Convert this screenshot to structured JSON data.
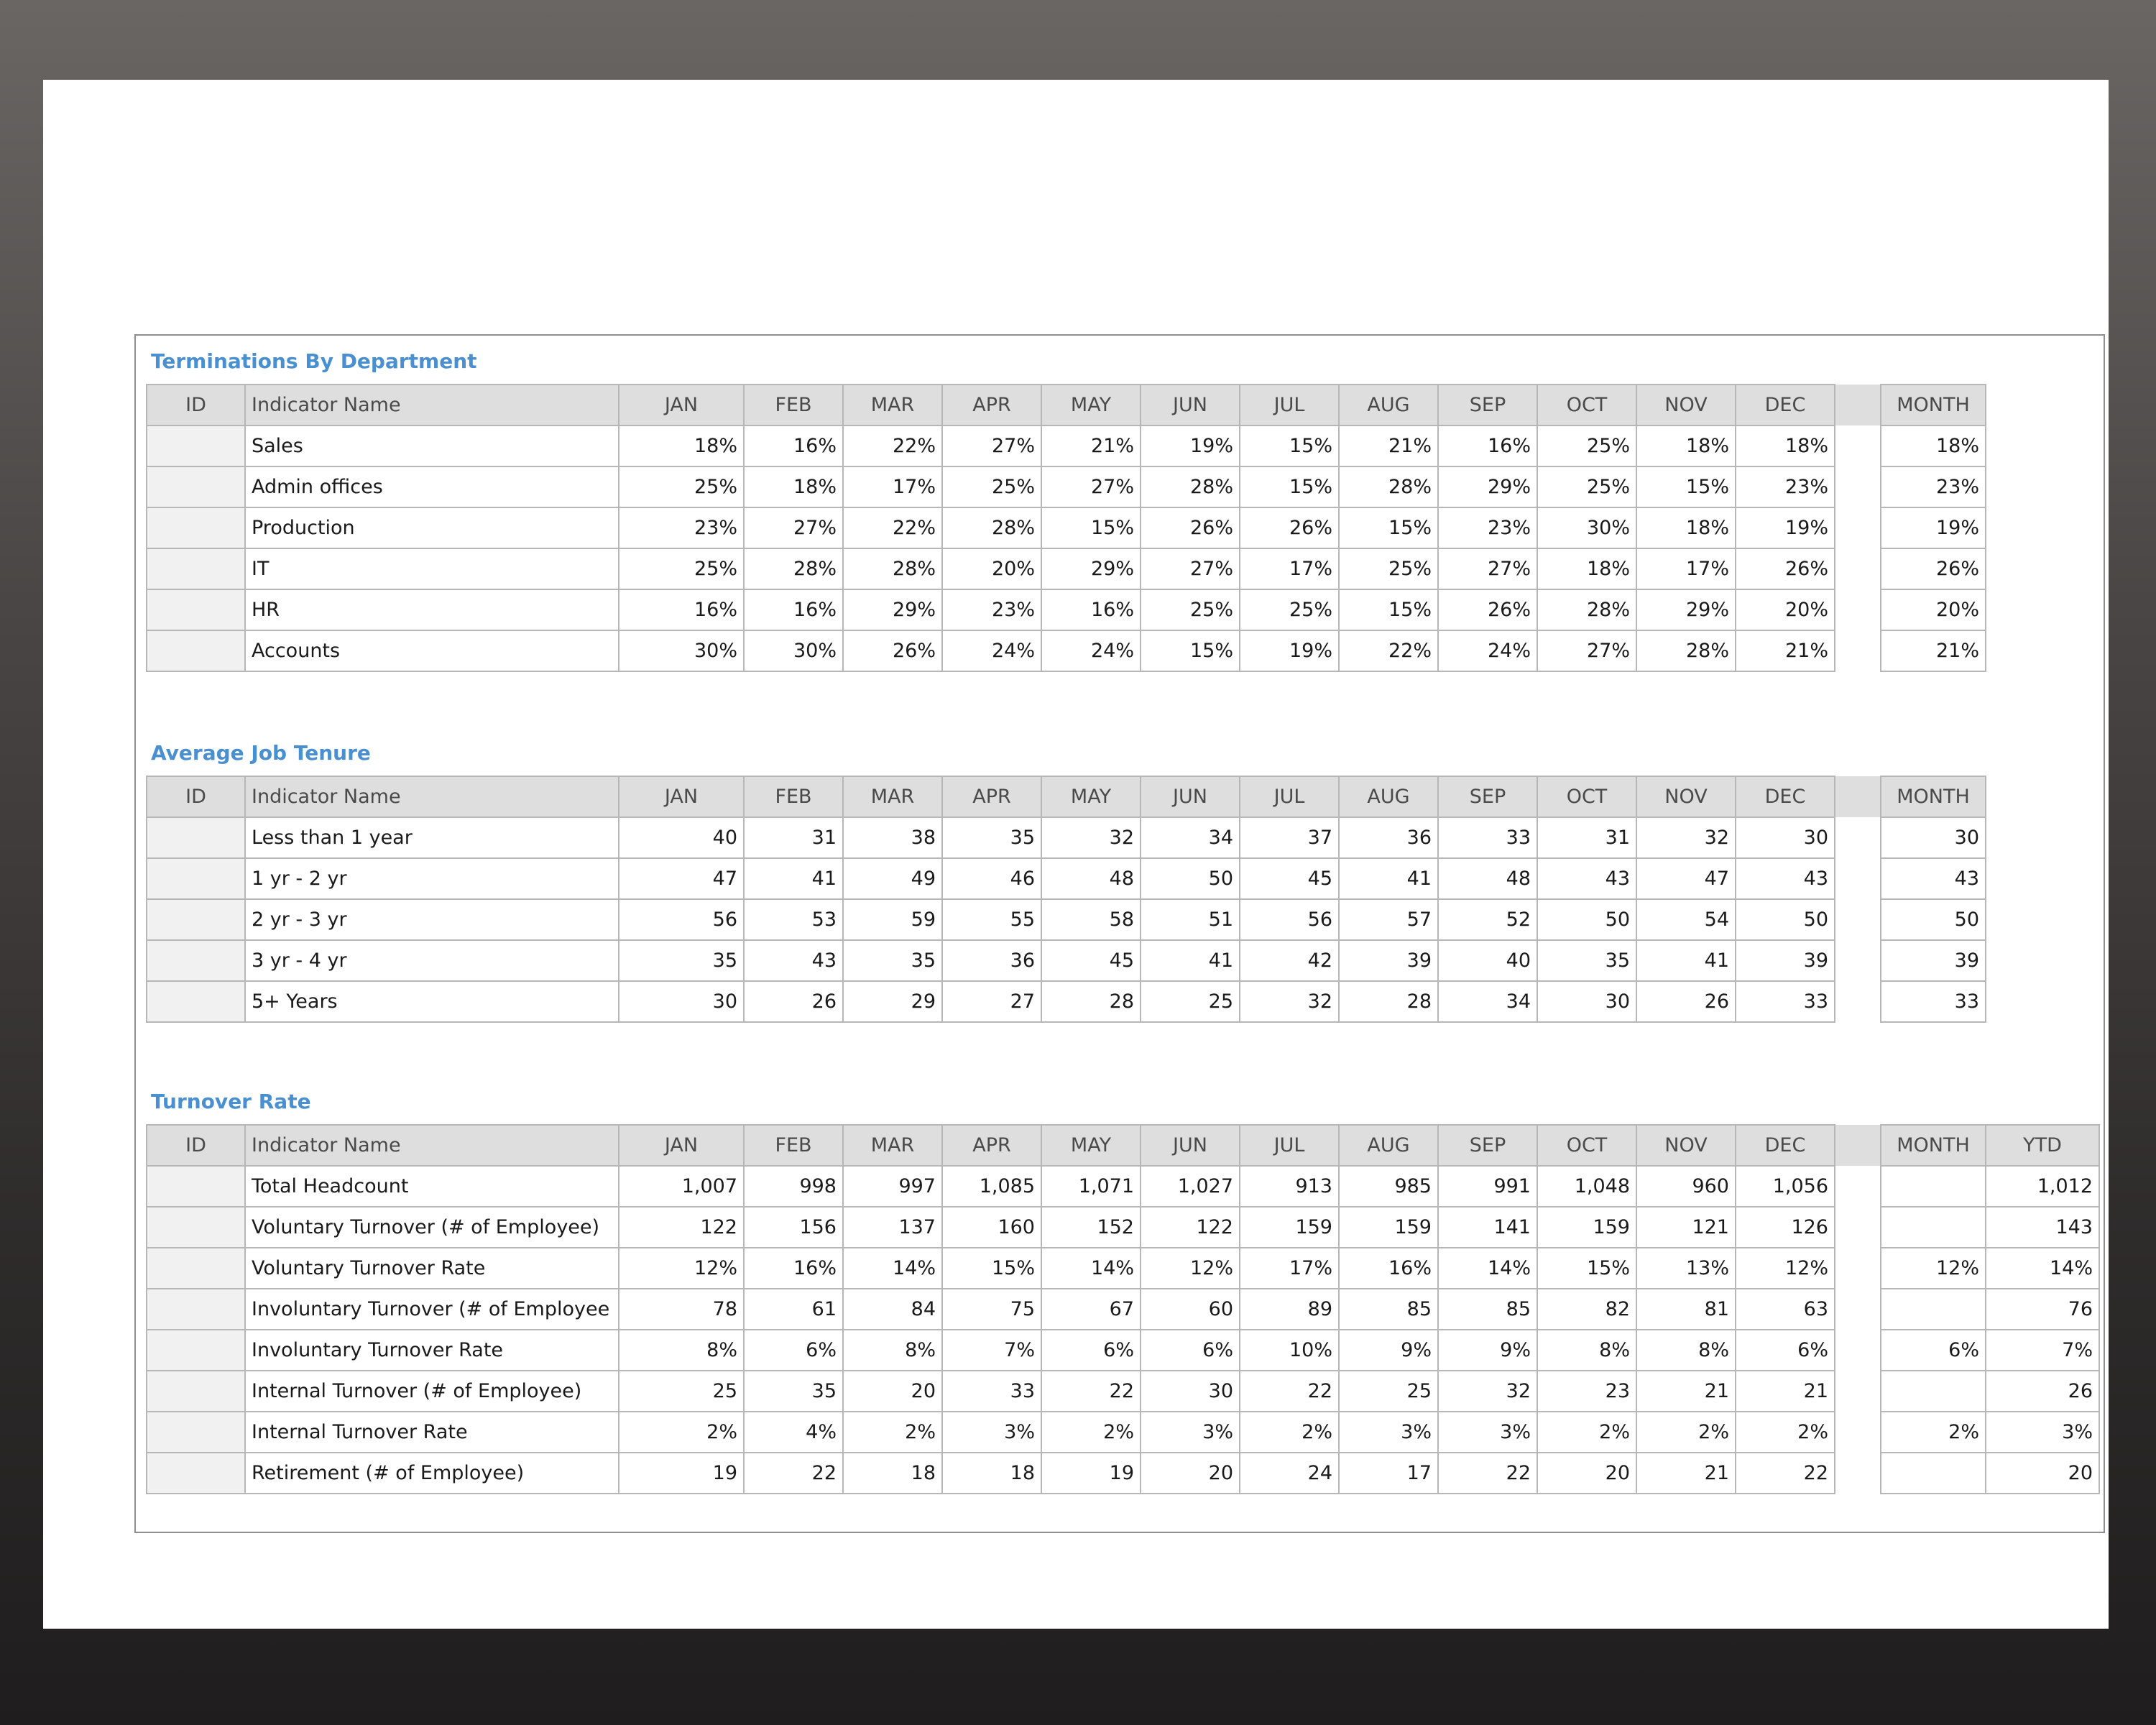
{
  "columns": {
    "id": "ID",
    "indicator": "Indicator Name",
    "months": [
      "JAN",
      "FEB",
      "MAR",
      "APR",
      "MAY",
      "JUN",
      "JUL",
      "AUG",
      "SEP",
      "OCT",
      "NOV",
      "DEC"
    ],
    "month": "MONTH",
    "ytd": "YTD"
  },
  "terminations": {
    "title": "Terminations By Department",
    "rows": [
      {
        "name": "Sales",
        "values": [
          "18%",
          "16%",
          "22%",
          "27%",
          "21%",
          "19%",
          "15%",
          "21%",
          "16%",
          "25%",
          "18%",
          "18%"
        ],
        "month": "18%"
      },
      {
        "name": "Admin offices",
        "values": [
          "25%",
          "18%",
          "17%",
          "25%",
          "27%",
          "28%",
          "15%",
          "28%",
          "29%",
          "25%",
          "15%",
          "23%"
        ],
        "month": "23%"
      },
      {
        "name": "Production",
        "values": [
          "23%",
          "27%",
          "22%",
          "28%",
          "15%",
          "26%",
          "26%",
          "15%",
          "23%",
          "30%",
          "18%",
          "19%"
        ],
        "month": "19%"
      },
      {
        "name": "IT",
        "values": [
          "25%",
          "28%",
          "28%",
          "20%",
          "29%",
          "27%",
          "17%",
          "25%",
          "27%",
          "18%",
          "17%",
          "26%"
        ],
        "month": "26%"
      },
      {
        "name": "HR",
        "values": [
          "16%",
          "16%",
          "29%",
          "23%",
          "16%",
          "25%",
          "25%",
          "15%",
          "26%",
          "28%",
          "29%",
          "20%"
        ],
        "month": "20%"
      },
      {
        "name": "Accounts",
        "values": [
          "30%",
          "30%",
          "26%",
          "24%",
          "24%",
          "15%",
          "19%",
          "22%",
          "24%",
          "27%",
          "28%",
          "21%"
        ],
        "month": "21%"
      }
    ]
  },
  "tenure": {
    "title": "Average Job Tenure",
    "rows": [
      {
        "name": "Less than 1 year",
        "values": [
          "40",
          "31",
          "38",
          "35",
          "32",
          "34",
          "37",
          "36",
          "33",
          "31",
          "32",
          "30"
        ],
        "month": "30"
      },
      {
        "name": "1 yr - 2 yr",
        "values": [
          "47",
          "41",
          "49",
          "46",
          "48",
          "50",
          "45",
          "41",
          "48",
          "43",
          "47",
          "43"
        ],
        "month": "43"
      },
      {
        "name": "2 yr - 3 yr",
        "values": [
          "56",
          "53",
          "59",
          "55",
          "58",
          "51",
          "56",
          "57",
          "52",
          "50",
          "54",
          "50"
        ],
        "month": "50"
      },
      {
        "name": "3 yr - 4 yr",
        "values": [
          "35",
          "43",
          "35",
          "36",
          "45",
          "41",
          "42",
          "39",
          "40",
          "35",
          "41",
          "39"
        ],
        "month": "39"
      },
      {
        "name": "5+ Years",
        "values": [
          "30",
          "26",
          "29",
          "27",
          "28",
          "25",
          "32",
          "28",
          "34",
          "30",
          "26",
          "33"
        ],
        "month": "33"
      }
    ]
  },
  "turnover": {
    "title": "Turnover Rate",
    "rows": [
      {
        "name": "Total Headcount",
        "values": [
          "1,007",
          "998",
          "997",
          "1,085",
          "1,071",
          "1,027",
          "913",
          "985",
          "991",
          "1,048",
          "960",
          "1,056"
        ],
        "month": "",
        "ytd": "1,012"
      },
      {
        "name": "Voluntary Turnover (# of Employee)",
        "values": [
          "122",
          "156",
          "137",
          "160",
          "152",
          "122",
          "159",
          "159",
          "141",
          "159",
          "121",
          "126"
        ],
        "month": "",
        "ytd": "143"
      },
      {
        "name": "Voluntary Turnover Rate",
        "values": [
          "12%",
          "16%",
          "14%",
          "15%",
          "14%",
          "12%",
          "17%",
          "16%",
          "14%",
          "15%",
          "13%",
          "12%"
        ],
        "month": "12%",
        "ytd": "14%"
      },
      {
        "name": " Involuntary Turnover (# of Employee",
        "values": [
          "78",
          "61",
          "84",
          "75",
          "67",
          "60",
          "89",
          "85",
          "85",
          "82",
          "81",
          "63"
        ],
        "month": "",
        "ytd": "76"
      },
      {
        "name": " Involuntary Turnover Rate",
        "values": [
          "8%",
          "6%",
          "8%",
          "7%",
          "6%",
          "6%",
          "10%",
          "9%",
          "9%",
          "8%",
          "8%",
          "6%"
        ],
        "month": "6%",
        "ytd": "7%"
      },
      {
        "name": "Internal Turnover (# of Employee)",
        "values": [
          "25",
          "35",
          "20",
          "33",
          "22",
          "30",
          "22",
          "25",
          "32",
          "23",
          "21",
          "21"
        ],
        "month": "",
        "ytd": "26"
      },
      {
        "name": "Internal Turnover Rate",
        "values": [
          "2%",
          "4%",
          "2%",
          "3%",
          "2%",
          "3%",
          "2%",
          "3%",
          "3%",
          "2%",
          "2%",
          "2%"
        ],
        "month": "2%",
        "ytd": "3%"
      },
      {
        "name": "Retirement (# of Employee)",
        "values": [
          "19",
          "22",
          "18",
          "18",
          "19",
          "20",
          "24",
          "17",
          "22",
          "20",
          "21",
          "22"
        ],
        "month": "",
        "ytd": "20"
      }
    ]
  }
}
